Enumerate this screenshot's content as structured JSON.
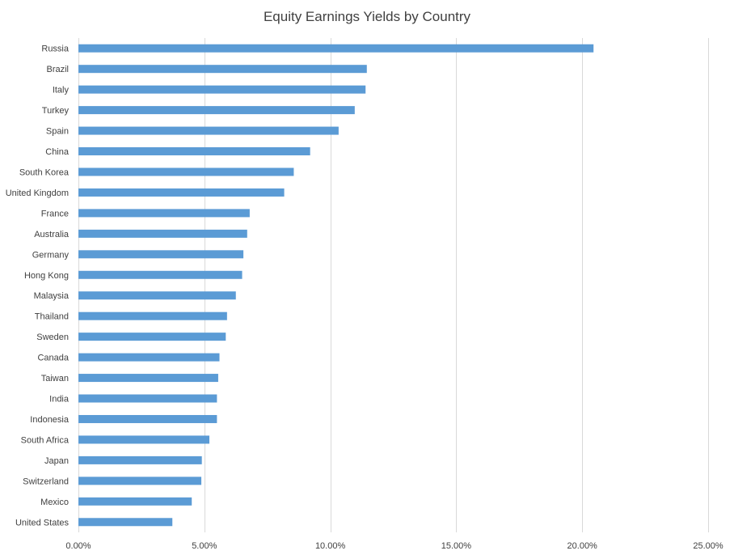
{
  "chart_data": {
    "type": "bar",
    "orientation": "horizontal",
    "title": "Equity Earnings Yields by Country",
    "categories": [
      "Russia",
      "Brazil",
      "Italy",
      "Turkey",
      "Spain",
      "China",
      "South Korea",
      "United Kingdom",
      "France",
      "Australia",
      "Germany",
      "Hong Kong",
      "Malaysia",
      "Thailand",
      "Sweden",
      "Canada",
      "Taiwan",
      "India",
      "Indonesia",
      "South Africa",
      "Japan",
      "Switzerland",
      "Mexico",
      "United States"
    ],
    "values": [
      20.45,
      11.45,
      11.4,
      10.97,
      10.33,
      9.2,
      8.55,
      8.17,
      6.8,
      6.7,
      6.55,
      6.5,
      6.25,
      5.9,
      5.85,
      5.6,
      5.55,
      5.5,
      5.5,
      5.2,
      4.9,
      4.88,
      4.5,
      3.73
    ],
    "xlim": [
      0,
      25
    ],
    "xticks": [
      0,
      5,
      10,
      15,
      20,
      25
    ],
    "xtick_labels": [
      "0.00%",
      "5.00%",
      "10.00%",
      "15.00%",
      "20.00%",
      "25.00%"
    ],
    "xlabel": "",
    "ylabel": "",
    "grid": "vertical",
    "legend": "none",
    "bar_color": "#5b9bd5",
    "grid_color": "#d9d9d9",
    "text_color": "#404040"
  }
}
